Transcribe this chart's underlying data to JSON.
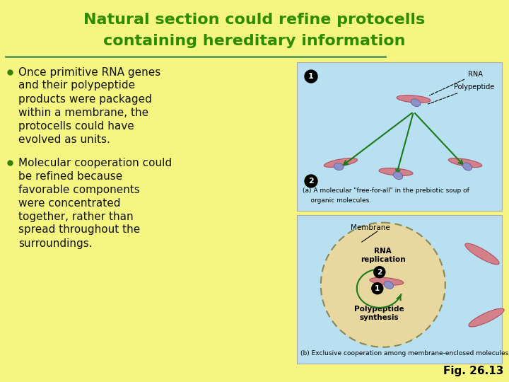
{
  "background_color": "#f5f582",
  "title_line1": "Natural section could refine protocells",
  "title_line2": "containing hereditary information",
  "title_color": "#2e8b00",
  "title_fontsize": 16,
  "divider_color": "#5a9a5a",
  "bullet1_lines": [
    "Once primitive RNA genes",
    "and their polypeptide",
    "products were packaged",
    "within a membrane, the",
    "protocells could have",
    "evolved as units."
  ],
  "bullet2_lines": [
    "Molecular cooperation could",
    "be refined because",
    "favorable components",
    "were concentrated",
    "together, rather than",
    "spread throughout the",
    "surroundings."
  ],
  "bullet_color": "#111111",
  "bullet_fontsize": 11,
  "bullet_dot_color": "#3a7d00",
  "fig_label": "Fig. 26.13",
  "fig_label_fontsize": 11,
  "panel_bg": "#b8e0f0",
  "panel_a_caption1": "(a) A molecular \"free-for-all\" in the prebiotic soup of",
  "panel_a_caption2": "    organic molecules.",
  "panel_b_caption": "(b) Exclusive cooperation among membrane-enclosed molecules.",
  "caption_fontsize": 6.5,
  "arrow_color": "#1a7a1a",
  "molecule_color": "#d4808a",
  "molecule_edge": "#b05060",
  "membrane_interior": "#e8d8a0",
  "membrane_edge": "#888855"
}
